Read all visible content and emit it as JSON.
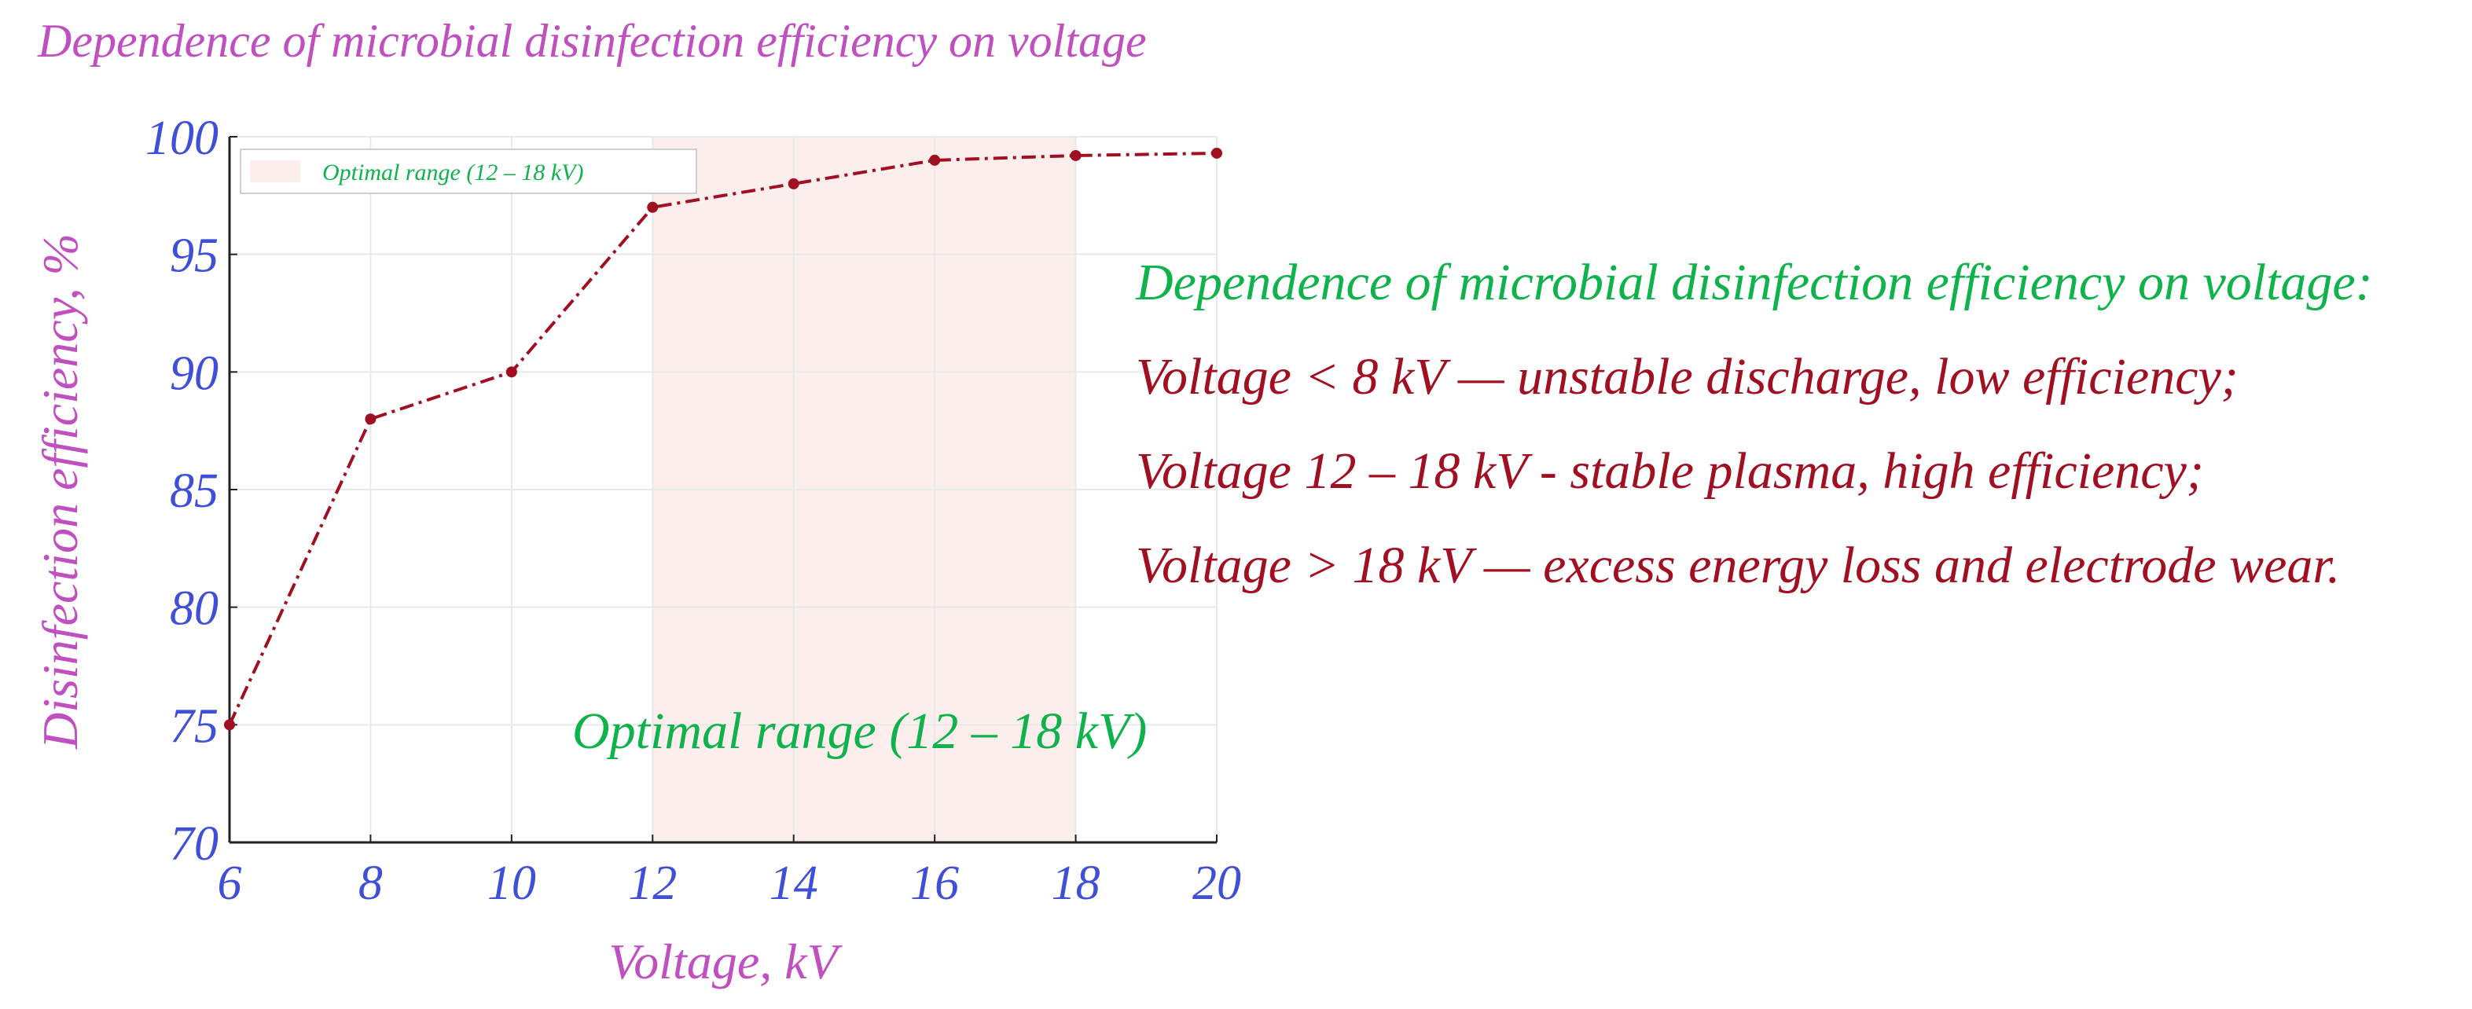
{
  "chart_data": {
    "type": "line",
    "title": "Dependence of microbial disinfection efficiency on voltage",
    "xlabel": "Voltage, kV",
    "ylabel": "Disinfection efficiency, %",
    "xlim": [
      6,
      20
    ],
    "ylim": [
      70,
      100
    ],
    "x_ticks": [
      6,
      8,
      10,
      12,
      14,
      16,
      18,
      20
    ],
    "y_ticks": [
      70,
      75,
      80,
      85,
      90,
      95,
      100
    ],
    "grid": true,
    "series": [
      {
        "name": "Disinfection efficiency",
        "color": "#a11022",
        "x": [
          6,
          8,
          10,
          12,
          14,
          16,
          18,
          20
        ],
        "y": [
          75,
          88,
          90,
          97,
          98,
          99,
          99.2,
          99.3
        ]
      }
    ],
    "shaded_region": {
      "x_range": [
        12,
        18
      ],
      "color": "#fdeeee",
      "label": "Optimal range (12 – 18 kV)"
    },
    "legend": {
      "label": "Optimal range (12 – 18 kV)",
      "placement": "top-left"
    },
    "annotation": "Optimal range (12 – 18 kV)"
  },
  "colors": {
    "title": "#c04fc0",
    "axis_label": "#c04fc0",
    "tick_label": "#3f4fd8",
    "series": "#a11022",
    "annotation": "#10b24c",
    "shade": "#fdeeee"
  },
  "notes": {
    "heading": "Dependence of microbial disinfection efficiency on voltage:",
    "lines": [
      "Voltage < 8 kV — unstable discharge, low efficiency;",
      "Voltage 12 – 18 kV - stable plasma, high efficiency;",
      "Voltage > 18 kV — excess energy loss and electrode wear."
    ]
  }
}
